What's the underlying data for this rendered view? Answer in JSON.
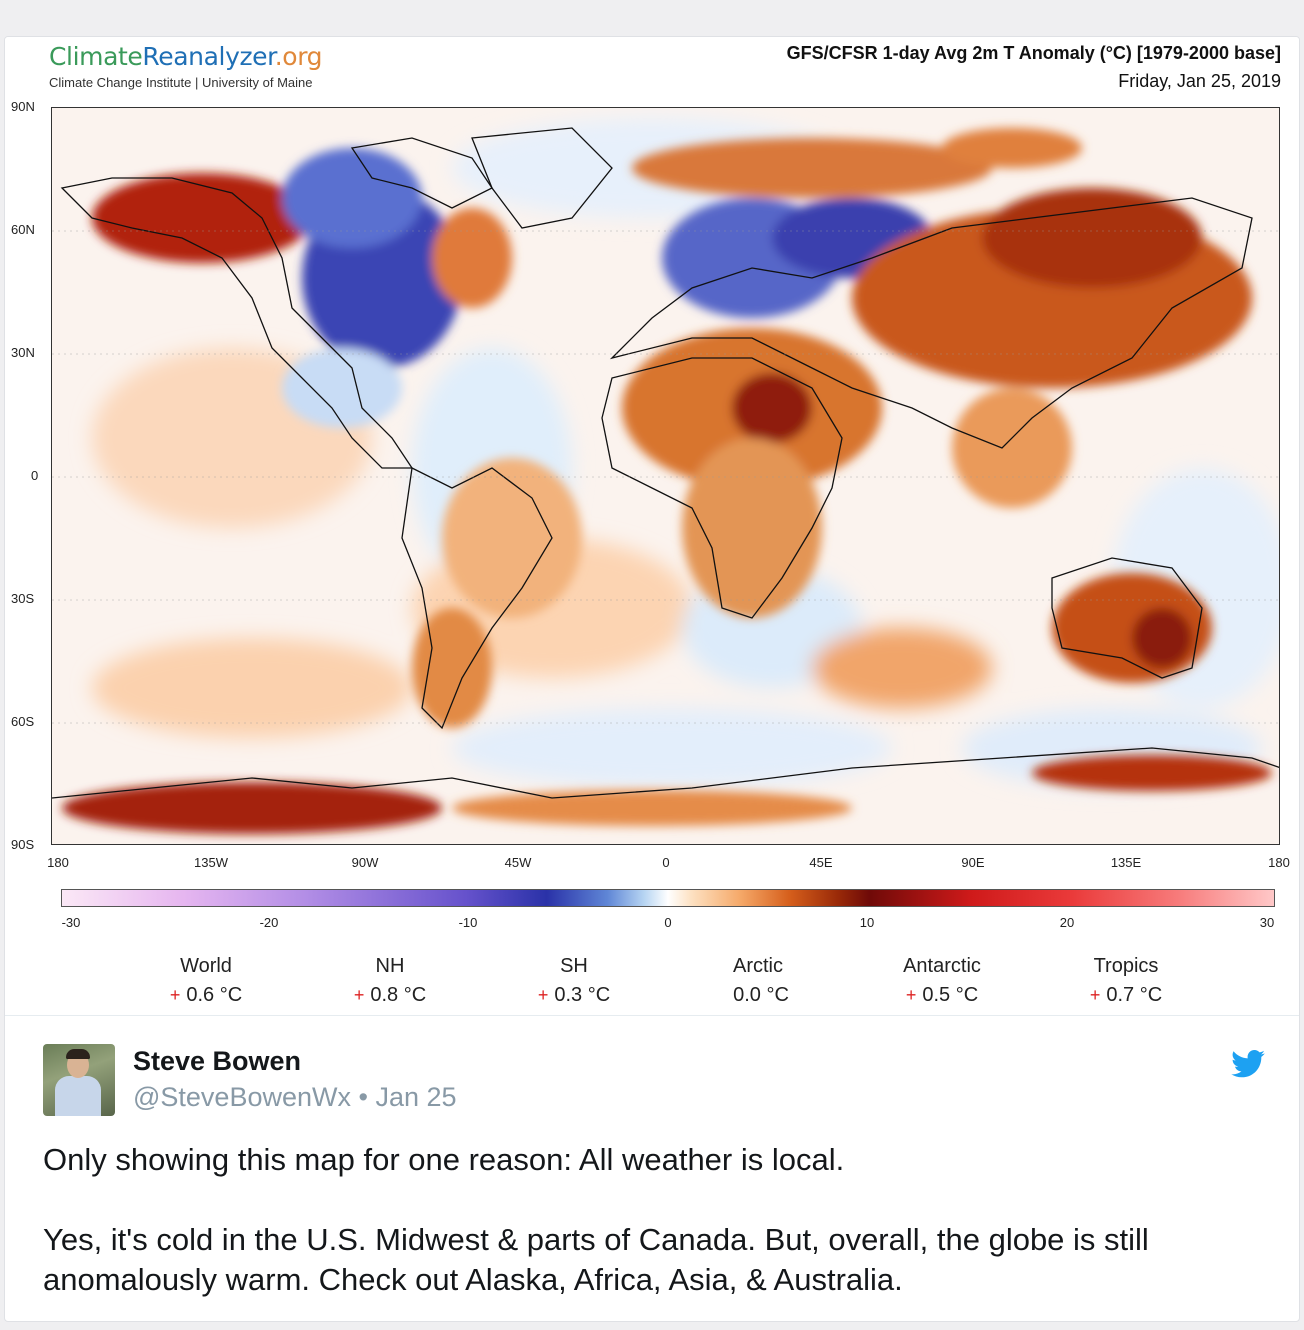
{
  "brand": {
    "name_part1": "Climate",
    "name_part2": "Reanalyzer",
    "name_part3": ".org",
    "subtitle": "Climate Change Institute | University of Maine"
  },
  "map": {
    "title": "GFS/CFSR 1-day Avg 2m T Anomaly (°C) [1979-2000 base]",
    "date": "Friday, Jan 25, 2019",
    "lat_ticks": [
      "90N",
      "60N",
      "30N",
      "0",
      "30S",
      "60S",
      "90S"
    ],
    "lon_ticks": [
      "180",
      "135W",
      "90W",
      "45W",
      "0",
      "45E",
      "90E",
      "135E",
      "180"
    ],
    "colorbar_labels": [
      "-30",
      "-20",
      "-10",
      "0",
      "10",
      "20",
      "30"
    ],
    "colors": {
      "cold": "#2a32a8",
      "warm": "#9a2a08",
      "hot": "#cf1a1a",
      "neutral": "#ffffff"
    }
  },
  "stats": [
    {
      "name": "World",
      "sign": "+",
      "value": "0.6 °C"
    },
    {
      "name": "NH",
      "sign": "+",
      "value": "0.8 °C"
    },
    {
      "name": "SH",
      "sign": "+",
      "value": "0.3 °C"
    },
    {
      "name": "Arctic",
      "sign": "",
      "value": "0.0 °C"
    },
    {
      "name": "Antarctic",
      "sign": "+",
      "value": "0.5 °C"
    },
    {
      "name": "Tropics",
      "sign": "+",
      "value": "0.7 °C"
    }
  ],
  "tweet": {
    "author_name": "Steve Bowen",
    "meta": "@SteveBowenWx • Jan 25",
    "paragraph1": "Only showing this map for one reason: All weather is local.",
    "paragraph2": "Yes, it's cold in the U.S. Midwest & parts of Canada. But, overall, the globe is still anomalously warm. Check out Alaska, Africa, Asia, & Australia.",
    "icon": "twitter-bird-icon",
    "accent": "#1da1f2"
  }
}
